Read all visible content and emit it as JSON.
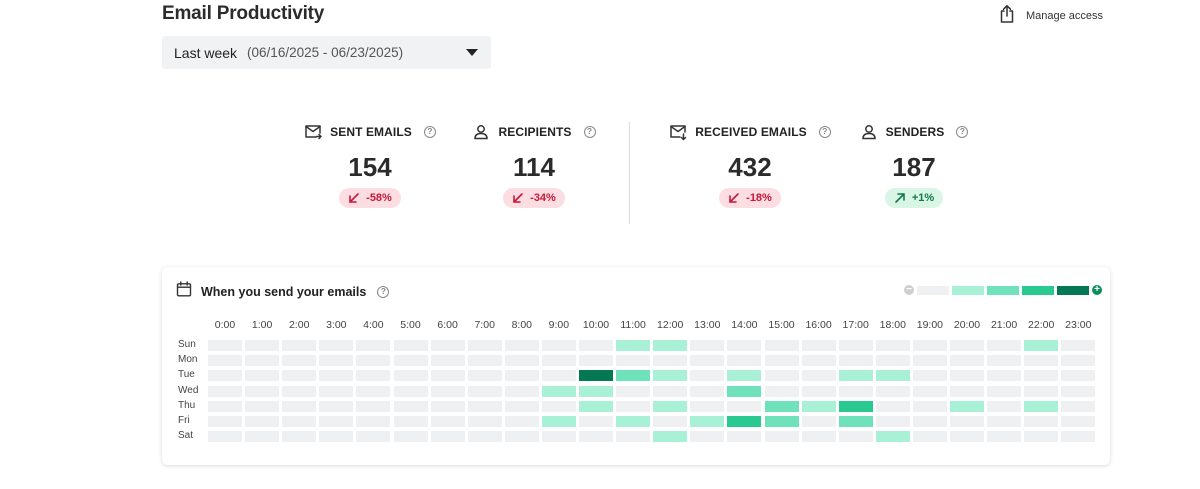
{
  "page": {
    "title": "Email Productivity"
  },
  "manage_access": {
    "label": "Manage access",
    "icon": "share-icon"
  },
  "date_filter": {
    "label": "Last week",
    "range": "(06/16/2025 - 06/23/2025)"
  },
  "stats": [
    {
      "id": "sent",
      "label": "SENT EMAILS",
      "icon": "mail-send-icon",
      "value": "154",
      "change": "-58%",
      "direction": "down"
    },
    {
      "id": "recipients",
      "label": "RECIPIENTS",
      "icon": "person-icon",
      "value": "114",
      "change": "-34%",
      "direction": "down"
    },
    {
      "id": "received",
      "label": "RECEIVED EMAILS",
      "icon": "mail-receive-icon",
      "value": "432",
      "change": "-18%",
      "direction": "down"
    },
    {
      "id": "senders",
      "label": "SENDERS",
      "icon": "person-icon",
      "value": "187",
      "change": "+1%",
      "direction": "up"
    }
  ],
  "colors": {
    "down_bg": "#fcdde2",
    "down_fg": "#c8173a",
    "up_bg": "#d8f5e6",
    "up_fg": "#14784a",
    "levels": [
      "#eff0f1",
      "#a8f0d6",
      "#6fe2bc",
      "#2bc992",
      "#037853"
    ]
  },
  "heatmap": {
    "title": "When you send your emails",
    "hours": [
      "0:00",
      "1:00",
      "2:00",
      "3:00",
      "4:00",
      "5:00",
      "6:00",
      "7:00",
      "8:00",
      "9:00",
      "10:00",
      "11:00",
      "12:00",
      "13:00",
      "14:00",
      "15:00",
      "16:00",
      "17:00",
      "18:00",
      "19:00",
      "20:00",
      "21:00",
      "22:00",
      "23:00"
    ],
    "days": [
      "Sun",
      "Mon",
      "Tue",
      "Wed",
      "Thu",
      "Fri",
      "Sat"
    ],
    "levels": [
      [
        0,
        0,
        0,
        0,
        0,
        0,
        0,
        0,
        0,
        0,
        0,
        1,
        1,
        0,
        0,
        0,
        0,
        0,
        0,
        0,
        0,
        0,
        1,
        0
      ],
      [
        0,
        0,
        0,
        0,
        0,
        0,
        0,
        0,
        0,
        0,
        0,
        0,
        0,
        0,
        0,
        0,
        0,
        0,
        0,
        0,
        0,
        0,
        0,
        0
      ],
      [
        0,
        0,
        0,
        0,
        0,
        0,
        0,
        0,
        0,
        0,
        4,
        2,
        1,
        0,
        1,
        0,
        0,
        1,
        1,
        0,
        0,
        0,
        0,
        0
      ],
      [
        0,
        0,
        0,
        0,
        0,
        0,
        0,
        0,
        0,
        1,
        1,
        0,
        0,
        0,
        2,
        0,
        0,
        0,
        0,
        0,
        0,
        0,
        0,
        0
      ],
      [
        0,
        0,
        0,
        0,
        0,
        0,
        0,
        0,
        0,
        0,
        1,
        0,
        1,
        0,
        0,
        2,
        1,
        3,
        0,
        0,
        1,
        0,
        1,
        0
      ],
      [
        0,
        0,
        0,
        0,
        0,
        0,
        0,
        0,
        0,
        1,
        0,
        1,
        0,
        1,
        3,
        2,
        0,
        2,
        0,
        0,
        0,
        0,
        0,
        0
      ],
      [
        0,
        0,
        0,
        0,
        0,
        0,
        0,
        0,
        0,
        0,
        0,
        0,
        1,
        0,
        0,
        0,
        0,
        0,
        1,
        0,
        0,
        0,
        0,
        0
      ]
    ]
  }
}
